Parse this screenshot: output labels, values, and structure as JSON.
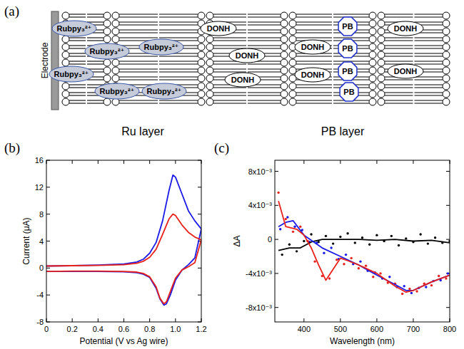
{
  "figure": {
    "panel_a": {
      "label": "(a)",
      "electrode": "Electrode",
      "ru_complexes": [
        "Rubpy₃²⁺",
        "Rubpy₃²⁺",
        "Rubpy₃²⁺",
        "Rubpy₃²⁺",
        "Rubpy₃²⁺",
        "Rubpy₃²⁺"
      ],
      "donh": [
        "DONH",
        "DONH",
        "DONH",
        "DONH",
        "DONH",
        "DONH",
        "DONH"
      ],
      "pb": [
        "PB",
        "PB",
        "PB",
        "PB"
      ],
      "ru_layer": "Ru layer",
      "pb_layer": "PB layer"
    }
  },
  "chart_data": [
    {
      "type": "line",
      "panel_label": "(b)",
      "x_label": "Potential (V vs Ag wire)",
      "y_label": "Current (μA)",
      "xlim": [
        0,
        1.2
      ],
      "ylim": [
        -8,
        16
      ],
      "xticks": [
        0,
        0.2,
        0.4,
        0.6,
        0.8,
        {
          "value": 1,
          "label": "1.0"
        },
        1.2
      ],
      "yticks": [
        -8,
        -4,
        0,
        4,
        8,
        12,
        16
      ],
      "grid": false,
      "series": [
        {
          "color": "#1a1ae6",
          "line_style": "solid",
          "x": [
            0,
            0.2,
            0.4,
            0.6,
            0.7,
            0.75,
            0.8,
            0.85,
            0.9,
            0.95,
            0.98,
            1.0,
            1.05,
            1.1,
            1.15,
            1.2,
            1.15,
            1.1,
            1.05,
            1.0,
            0.96,
            0.93,
            0.91,
            0.88,
            0.85,
            0.8,
            0.75,
            0.7,
            0.6,
            0.4,
            0.2,
            0
          ],
          "values": [
            0.3,
            0.35,
            0.45,
            0.6,
            0.9,
            1.3,
            2.2,
            3.8,
            7.0,
            11.5,
            13.8,
            13.5,
            11.0,
            8.5,
            7.0,
            5.8,
            1.5,
            0.5,
            -0.3,
            -1.8,
            -4.0,
            -5.3,
            -5.5,
            -4.6,
            -3.0,
            -1.4,
            -0.9,
            -0.7,
            -0.55,
            -0.5,
            -0.5,
            -0.5
          ]
        },
        {
          "color": "#e8221b",
          "line_style": "solid",
          "x": [
            0,
            0.2,
            0.4,
            0.6,
            0.7,
            0.75,
            0.8,
            0.85,
            0.9,
            0.95,
            0.98,
            1.0,
            1.05,
            1.1,
            1.15,
            1.2,
            1.15,
            1.1,
            1.05,
            1.0,
            0.96,
            0.93,
            0.91,
            0.88,
            0.85,
            0.8,
            0.75,
            0.7,
            0.6,
            0.4,
            0.2,
            0
          ],
          "values": [
            0.3,
            0.35,
            0.4,
            0.5,
            0.7,
            1.0,
            1.6,
            2.8,
            5.0,
            7.3,
            8.0,
            7.8,
            6.4,
            5.3,
            4.6,
            4.2,
            0.8,
            0.2,
            -0.3,
            -1.5,
            -3.5,
            -5.0,
            -5.3,
            -4.5,
            -2.8,
            -1.3,
            -0.8,
            -0.6,
            -0.5,
            -0.45,
            -0.45,
            -0.5
          ]
        }
      ]
    },
    {
      "type": "scatter",
      "panel_label": "(c)",
      "x_label": "Wavelength (nm)",
      "y_label": "ΔA",
      "xlim": [
        320,
        800
      ],
      "ylim": [
        -0.0097,
        0.0093
      ],
      "xticks": [
        400,
        500,
        600,
        700,
        800
      ],
      "yticks": [
        {
          "value": -0.008,
          "label": "-8x10⁻³"
        },
        {
          "value": -0.004,
          "label": "-4x10⁻³"
        },
        0,
        {
          "value": 0.004,
          "label": "4x10⁻³"
        },
        {
          "value": 0.008,
          "label": "8x10⁻³"
        }
      ],
      "grid": false,
      "series": [
        {
          "type": "scatter",
          "marker": "dot",
          "color": "#000000",
          "x": [
            340,
            360,
            380,
            400,
            420,
            440,
            460,
            480,
            500,
            520,
            540,
            560,
            580,
            600,
            620,
            640,
            660,
            680,
            700,
            720,
            740,
            760,
            780,
            800
          ],
          "values": [
            -0.0018,
            -0.0006,
            -0.0014,
            -0.0002,
            0.0006,
            -0.0003,
            0.0004,
            -0.0005,
            0.0003,
            0.0007,
            -0.0004,
            0.0002,
            -0.0006,
            0.0005,
            -0.0002,
            0.0004,
            -0.0007,
            0.0001,
            -0.0003,
            0.0006,
            -0.0005,
            0.0002,
            -0.0004,
            -0.0002
          ]
        },
        {
          "type": "scatter",
          "marker": "dot",
          "color": "#1a1ae6",
          "x": [
            335,
            355,
            375,
            395,
            415,
            435,
            455,
            475,
            495,
            515,
            535,
            555,
            575,
            595,
            615,
            635,
            655,
            675,
            695,
            715,
            735,
            755,
            775,
            795
          ],
          "values": [
            0.0012,
            0.0026,
            0.0015,
            0.0011,
            -0.0003,
            -0.0004,
            -0.0016,
            -0.001,
            -0.0023,
            -0.0018,
            -0.0029,
            -0.0026,
            -0.0037,
            -0.0039,
            -0.0046,
            -0.0044,
            -0.0056,
            -0.0055,
            -0.0063,
            -0.0057,
            -0.0056,
            -0.0049,
            -0.0048,
            -0.004
          ]
        },
        {
          "type": "scatter",
          "marker": "dot",
          "color": "#e8221b",
          "x": [
            330,
            350,
            370,
            390,
            410,
            430,
            450,
            470,
            490,
            510,
            530,
            550,
            570,
            590,
            610,
            630,
            650,
            670,
            690,
            710,
            730,
            750,
            770,
            790
          ],
          "values": [
            0.0055,
            0.0024,
            0.0009,
            0.0015,
            -0.0002,
            -0.0026,
            -0.0043,
            -0.0046,
            -0.0024,
            -0.0029,
            -0.0022,
            -0.0034,
            -0.0031,
            -0.0044,
            -0.004,
            -0.0051,
            -0.0052,
            -0.0064,
            -0.0058,
            -0.0061,
            -0.0052,
            -0.0054,
            -0.0043,
            -0.0046
          ]
        },
        {
          "type": "line",
          "line_style": "solid",
          "color": "#000000",
          "x": [
            330,
            360,
            390,
            420,
            450,
            500,
            550,
            600,
            650,
            700,
            750,
            800
          ],
          "values": [
            -0.0013,
            -0.001,
            -0.001,
            -0.0003,
            0,
            0,
            0,
            -0.0001,
            0,
            -0.0002,
            -0.0001,
            -0.0004
          ]
        },
        {
          "type": "line",
          "line_style": "solid",
          "color": "#1a1ae6",
          "x": [
            330,
            350,
            370,
            400,
            450,
            500,
            550,
            600,
            650,
            680,
            700,
            750,
            800
          ],
          "values": [
            0.0015,
            0.002,
            0.0022,
            0.0005,
            -0.001,
            -0.002,
            -0.003,
            -0.0042,
            -0.0053,
            -0.006,
            -0.006,
            -0.005,
            -0.0042
          ]
        },
        {
          "type": "line",
          "line_style": "solid",
          "color": "#e8221b",
          "x": [
            330,
            350,
            380,
            400,
            420,
            440,
            460,
            480,
            500,
            520,
            550,
            600,
            650,
            680,
            700,
            750,
            800
          ],
          "values": [
            0.0045,
            0.0015,
            0.0012,
            0.0005,
            -0.001,
            -0.003,
            -0.0048,
            -0.0035,
            -0.0022,
            -0.0025,
            -0.003,
            -0.004,
            -0.0055,
            -0.0062,
            -0.006,
            -0.005,
            -0.0042
          ]
        }
      ]
    }
  ]
}
